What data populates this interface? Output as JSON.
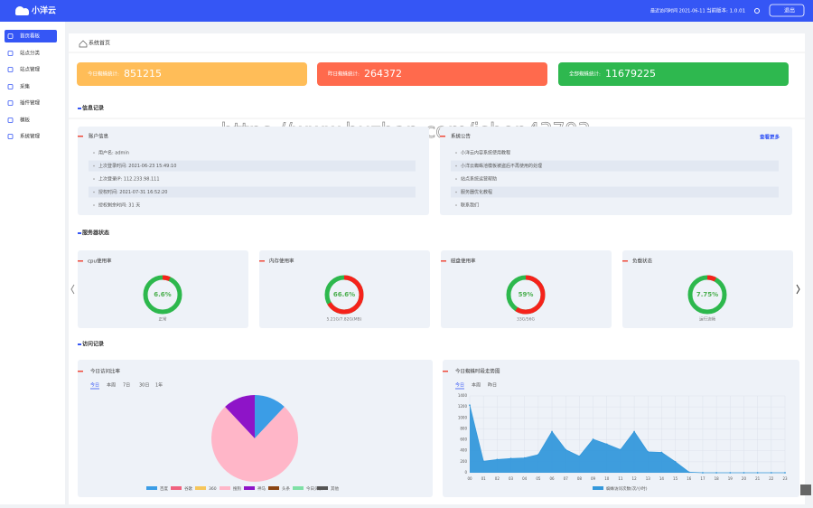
{
  "header": {
    "logo": "小洋云",
    "last_login": "最近访问时间 2021-06-11",
    "version": "当前版本: 1.0.01",
    "logout": "退出"
  },
  "sidebar": {
    "items": [
      "首页看板",
      "站点分类",
      "站点管理",
      "采集",
      "插件管理",
      "模板",
      "系统管理"
    ],
    "active": 0
  },
  "breadcrumb": "系统首页",
  "watermark": "https://www.huzhan.com/ishop43793",
  "stats": [
    {
      "label": "今日蜘蛛统计:",
      "value": 851215,
      "color": "#ffbd58"
    },
    {
      "label": "昨日蜘蛛统计:",
      "value": 264372,
      "color": "#ff6a4d"
    },
    {
      "label": "全部蜘蛛统计:",
      "value": 11679225,
      "color": "#2eb84f"
    }
  ],
  "info": {
    "title": "信息记录",
    "account": {
      "title": "账户信息",
      "items": [
        "用户名: admin",
        "上次登录时间: 2021-06-23 15:49:10",
        "上次登录IP: 112.233.98.111",
        "授权时间: 2021-07-31 16:52:20",
        "授权剩余时间: 31 天"
      ]
    },
    "notice": {
      "title": "系统公告",
      "more": "查看更多",
      "items": [
        "小洋云内容系统使用教程",
        "小洋云蜘蛛池模板被盗后不再使用的处理",
        "站点系统运营帮助",
        "服务器优化教程",
        "联系我们"
      ]
    }
  },
  "server": {
    "title": "服务器状态",
    "gauges": [
      {
        "title": "cpu使用率",
        "value": 6.6,
        "value_label": "6.6%",
        "caption": "正常"
      },
      {
        "title": "内存使用率",
        "value": 66.6,
        "value_label": "66.6%",
        "caption": "5.21G/7.82G(MB)"
      },
      {
        "title": "磁盘使用率",
        "value": 59,
        "value_label": "59%",
        "caption": "33G/56G"
      },
      {
        "title": "负载状态",
        "value": 7.75,
        "value_label": "7.75%",
        "caption": "运行流畅"
      }
    ]
  },
  "visits": {
    "title": "访问记录",
    "pie": {
      "type": "pie",
      "title": "今日访问比率",
      "tabs": [
        "今日",
        "本周",
        "7日",
        "30日",
        "1年"
      ],
      "categories": [
        "百度",
        "谷歌",
        "360",
        "搜狗",
        "神马",
        "头条",
        "今日头条",
        "其他"
      ],
      "values": [
        12,
        0,
        0,
        76,
        12,
        0,
        0,
        0
      ],
      "colors": [
        "#3b9de6",
        "#f0627f",
        "#f6c65b",
        "#ffb6c8",
        "#8e14c8",
        "#8b4513",
        "#7fe0a6",
        "#555555"
      ]
    },
    "line": {
      "type": "area",
      "title": "今日蜘蛛时段走势图",
      "tabs": [
        "今日",
        "本周",
        "昨日"
      ],
      "categories": [
        "00",
        "01",
        "02",
        "03",
        "04",
        "05",
        "06",
        "07",
        "08",
        "09",
        "10",
        "11",
        "12",
        "13",
        "14",
        "15",
        "16",
        "17",
        "18",
        "19",
        "20",
        "21",
        "22",
        "23"
      ],
      "series": [
        {
          "name": "蜘蛛访问次数(次/小时)",
          "color": "#3498db",
          "values": [
            1230,
            210,
            240,
            260,
            270,
            330,
            750,
            420,
            300,
            610,
            520,
            420,
            750,
            380,
            370,
            200,
            10,
            0,
            0,
            0,
            0,
            0,
            0,
            0
          ]
        }
      ],
      "ylim": [
        0,
        1400
      ],
      "yticks": [
        0,
        200,
        400,
        600,
        800,
        1000,
        1200,
        1400
      ],
      "grid": true
    }
  }
}
